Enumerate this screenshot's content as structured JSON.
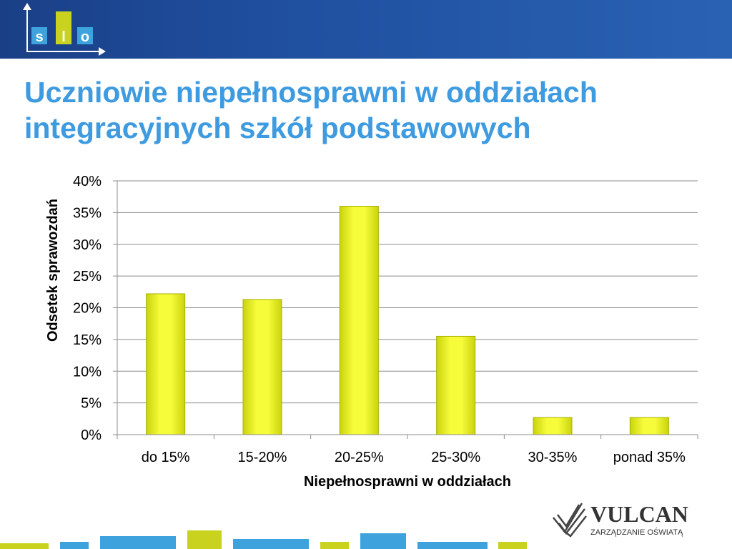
{
  "header": {
    "logo_letters": [
      "s",
      "l",
      "o"
    ],
    "logo_colors": [
      "#3ea3dc",
      "#c8d21f",
      "#3ea3dc"
    ]
  },
  "slide": {
    "title_line1": "Uczniowie niepełnosprawni w oddziałach",
    "title_line2": "integracyjnych szkół podstawowych"
  },
  "chart_data": {
    "type": "bar",
    "categories": [
      "do 15%",
      "15-20%",
      "20-25%",
      "25-30%",
      "30-35%",
      "ponad 35%"
    ],
    "values": [
      22.2,
      21.3,
      36.0,
      15.5,
      2.7,
      2.7
    ],
    "xlabel": "Niepełnosprawni  w oddziałach",
    "ylabel": "Odsetek sprawozdań",
    "ylim": [
      0,
      40
    ],
    "yticks": [
      0,
      5,
      10,
      15,
      20,
      25,
      30,
      35,
      40
    ],
    "ytick_labels": [
      "0%",
      "5%",
      "10%",
      "15%",
      "20%",
      "25%",
      "30%",
      "35%",
      "40%"
    ],
    "grid": true,
    "legend": "none",
    "bar_color": "#e8f020"
  },
  "branding": {
    "name": "VULCAN",
    "tagline": "ZARZĄDZANIE OŚWIATĄ"
  },
  "footer_colors": [
    "#c8d21f",
    "#3ea3dc",
    "#3ea3dc",
    "#c8d21f",
    "#3ea3dc",
    "#c8d21f",
    "#3ea3dc",
    "#3ea3dc",
    "#c8d21f"
  ]
}
